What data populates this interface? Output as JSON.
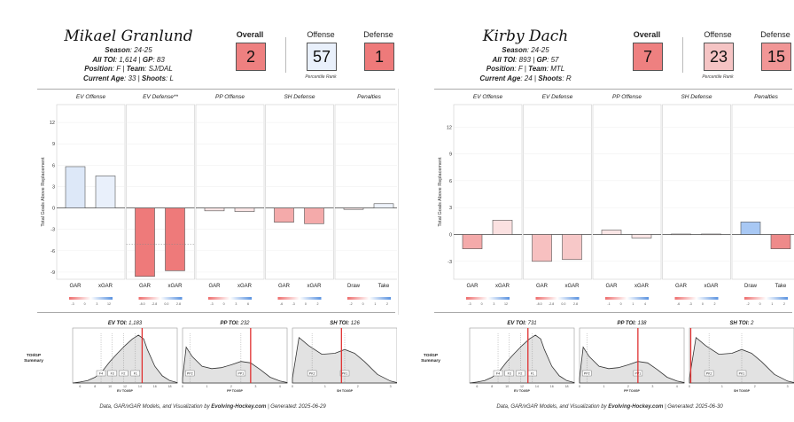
{
  "players": [
    {
      "name": "Mikael Granlund",
      "season_label": "Season",
      "season": "24-25",
      "toi_label": "All TOI",
      "toi": "1,614",
      "gp_label": "GP",
      "gp": "83",
      "position_label": "Position",
      "position": "F",
      "team_label": "Team",
      "team": "SJ/DAL",
      "age_label": "Current Age",
      "age": "33",
      "shoots_label": "Shoots",
      "shoots": "L",
      "ranks": {
        "overall_label": "Overall",
        "overall": "2",
        "offense_label": "Offense",
        "offense": "57",
        "defense_label": "Defense",
        "defense": "1"
      },
      "rank_colors": {
        "overall": "#ee8080",
        "offense": "#e9f0fb",
        "defense": "#ee7a7a"
      },
      "percentile_label": "Percentile Rank",
      "footer_pre": "Data, GAR/xGAR Models, and Visualization by",
      "footer_brand": "Evolving-Hockey.com",
      "footer_post": "| Generated: 2025-06-29",
      "toi_panels": {
        "row_label": "TOI/GP Summary",
        "ev_label": "EV TOI",
        "ev": "1,183",
        "pp_label": "PP TOI",
        "pp": "232",
        "sh_label": "SH TOI",
        "sh": "126"
      }
    },
    {
      "name": "Kirby Dach",
      "season_label": "Season",
      "season": "24-25",
      "toi_label": "All TOI",
      "toi": "893",
      "gp_label": "GP",
      "gp": "57",
      "position_label": "Position",
      "position": "F",
      "team_label": "Team",
      "team": "MTL",
      "age_label": "Current Age",
      "age": "24",
      "shoots_label": "Shoots",
      "shoots": "R",
      "ranks": {
        "overall_label": "Overall",
        "overall": "7",
        "offense_label": "Offense",
        "offense": "23",
        "defense_label": "Defense",
        "defense": "15"
      },
      "rank_colors": {
        "overall": "#ee8080",
        "offense": "#f5c4c4",
        "defense": "#f19696"
      },
      "percentile_label": "Percentile Rank",
      "footer_pre": "Data, GAR/xGAR Models, and Visualization by",
      "footer_brand": "Evolving-Hockey.com",
      "footer_post": "| Generated: 2025-06-30",
      "toi_panels": {
        "row_label": "TOI/GP Summary",
        "ev_label": "EV TOI",
        "ev": "731",
        "pp_label": "PP TOI",
        "pp": "138",
        "sh_label": "SH TOI",
        "sh": "2"
      }
    }
  ],
  "chart_data": [
    {
      "type": "bar",
      "player": "Mikael Granlund",
      "ylabel": "Total Goals Above Replacement",
      "ylim": [
        -10,
        14.5
      ],
      "yticks": [
        -9,
        -6,
        -3,
        0,
        3,
        6,
        9,
        12
      ],
      "panels": [
        {
          "title": "EV Offense",
          "categories": [
            "GAR",
            "xGAR"
          ],
          "values": [
            5.8,
            4.5
          ],
          "colors": [
            "#dde8f8",
            "#e9f0fb"
          ]
        },
        {
          "title": "EV Defense**",
          "categories": [
            "GAR",
            "xGAR"
          ],
          "values": [
            -9.6,
            -8.8
          ],
          "colors": [
            "#ee7a7a",
            "#ee7a7a"
          ]
        },
        {
          "title": "PP Offense",
          "categories": [
            "GAR",
            "xGAR"
          ],
          "values": [
            -0.4,
            -0.5
          ],
          "colors": [
            "#fbe6e6",
            "#fbe6e6"
          ]
        },
        {
          "title": "SH Defense",
          "categories": [
            "GAR",
            "xGAR"
          ],
          "values": [
            -2.0,
            -2.2
          ],
          "colors": [
            "#f4aaaa",
            "#f4aaaa"
          ]
        },
        {
          "title": "Penalties",
          "categories": [
            "Draw",
            "Take"
          ],
          "values": [
            -0.2,
            0.6
          ],
          "colors": [
            "#fbe8e8",
            "#eef3fb"
          ]
        }
      ],
      "legend_ticks": [
        [
          "-3",
          "0",
          "3",
          "12"
        ],
        [
          "-8.0",
          "-2.8",
          "0.0",
          "2.8"
        ],
        [
          "-3",
          "0",
          "3",
          "6"
        ],
        [
          "-6",
          "-3",
          "0",
          "2"
        ],
        [
          "-2",
          "0",
          "1",
          "2"
        ]
      ],
      "toi_x_ticks": {
        "ev": [
          "6",
          "8",
          "10",
          "12",
          "14",
          "16",
          "18"
        ],
        "pp": [
          "0",
          "1",
          "2",
          "3",
          "4"
        ],
        "sh": [
          "0",
          "1",
          "2",
          "3"
        ]
      },
      "toi_x_labels": {
        "ev": "EV TOI/GP",
        "pp": "PP TOI/GP",
        "sh": "SH TOI/GP"
      },
      "toi_markers": {
        "ev": [
          "F4",
          "F3",
          "F2",
          "F1"
        ],
        "pp": [
          "PP2",
          "PP1"
        ],
        "sh": [
          "PK2",
          "PK1"
        ]
      },
      "toi_player_value": {
        "ev": 14.3,
        "pp": 2.8,
        "sh": 1.5
      }
    },
    {
      "type": "bar",
      "player": "Kirby Dach",
      "ylabel": "Total Goals Above Replacement",
      "ylim": [
        -5,
        14.5
      ],
      "yticks": [
        -3,
        0,
        3,
        6,
        9,
        12
      ],
      "panels": [
        {
          "title": "EV Offense",
          "categories": [
            "GAR",
            "xGAR"
          ],
          "values": [
            -1.6,
            1.6
          ],
          "colors": [
            "#f4aaaa",
            "#fbe1e1"
          ]
        },
        {
          "title": "EV Defense",
          "categories": [
            "GAR",
            "xGAR"
          ],
          "values": [
            -3.0,
            -2.8
          ],
          "colors": [
            "#f7c0c0",
            "#f7c8c8"
          ]
        },
        {
          "title": "PP Offense",
          "categories": [
            "GAR",
            "xGAR"
          ],
          "values": [
            0.5,
            -0.4
          ],
          "colors": [
            "#fbe6e6",
            "#fbe6e6"
          ]
        },
        {
          "title": "SH Defense",
          "categories": [
            "GAR",
            "xGAR"
          ],
          "values": [
            0.05,
            0.05
          ],
          "colors": [
            "#fbe6e6",
            "#fbe6e6"
          ]
        },
        {
          "title": "Penalties",
          "categories": [
            "Draw",
            "Take"
          ],
          "values": [
            1.4,
            -1.6
          ],
          "colors": [
            "#a8c8f4",
            "#ee8a8a"
          ]
        }
      ],
      "legend_ticks": [
        [
          "-3",
          "0",
          "3",
          "12"
        ],
        [
          "-8.0",
          "-2.8",
          "0.0",
          "2.8"
        ],
        [
          "-1",
          "0",
          "1",
          "4"
        ],
        [
          "-6",
          "-3",
          "0",
          "2"
        ],
        [
          "-2",
          "0",
          "1",
          "2"
        ]
      ],
      "toi_x_ticks": {
        "ev": [
          "6",
          "8",
          "10",
          "12",
          "14",
          "16",
          "18"
        ],
        "pp": [
          "0",
          "1",
          "2",
          "3",
          "4"
        ],
        "sh": [
          "0",
          "1",
          "2",
          "3"
        ]
      },
      "toi_x_labels": {
        "ev": "EV TOI/GP",
        "pp": "PP TOI/GP",
        "sh": "SH TOI/GP"
      },
      "toi_markers": {
        "ev": [
          "F4",
          "F3",
          "F2",
          "F1"
        ],
        "pp": [
          "PP2",
          "PP1"
        ],
        "sh": [
          "PK2",
          "PK1"
        ]
      },
      "toi_player_value": {
        "ev": 12.8,
        "pp": 2.4,
        "sh": 0.04
      }
    }
  ]
}
